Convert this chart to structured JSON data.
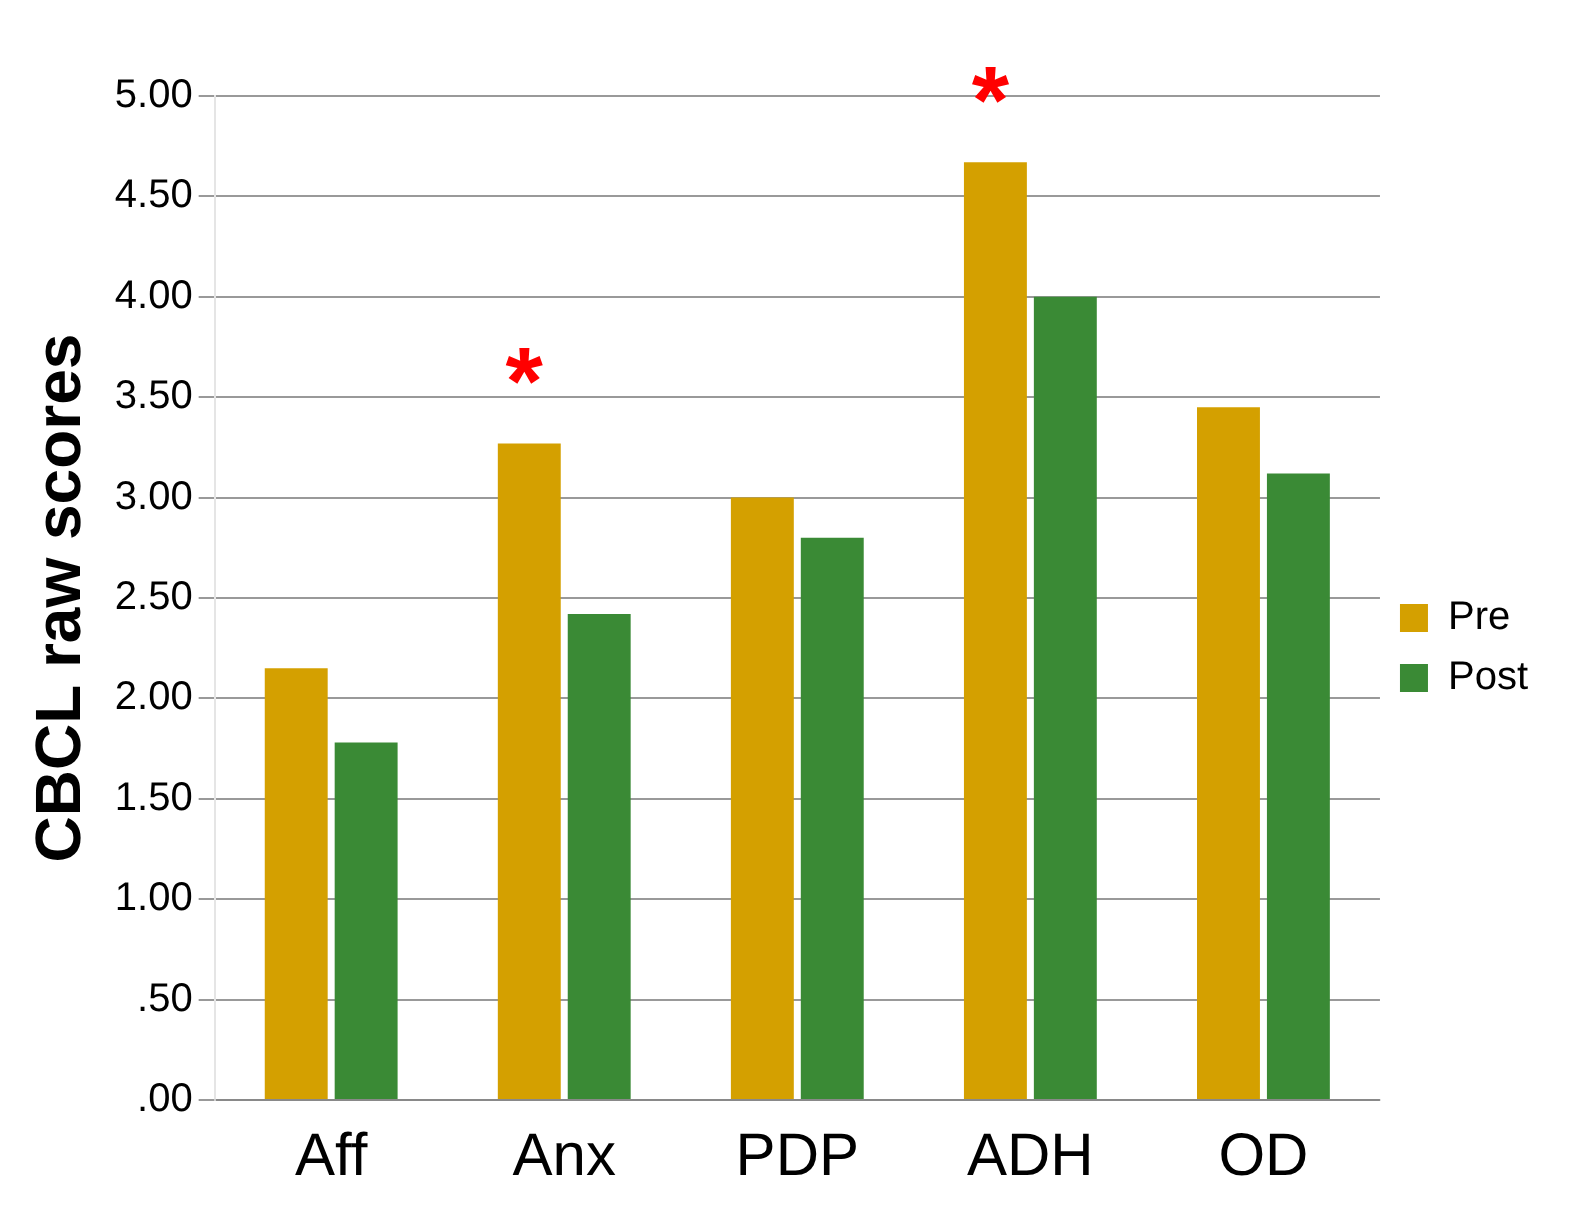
{
  "chart_data": {
    "type": "bar",
    "ylabel": "CBCL raw scores",
    "categories": [
      "Aff",
      "Anx",
      "PDP",
      "ADH",
      "OD"
    ],
    "series": [
      {
        "name": "Pre",
        "color": "#d4a000",
        "values": [
          2.15,
          3.27,
          3.0,
          4.67,
          3.45
        ]
      },
      {
        "name": "Post",
        "color": "#3a8a35",
        "values": [
          1.78,
          2.42,
          2.8,
          4.0,
          3.12
        ]
      }
    ],
    "ylim": [
      0,
      5
    ],
    "yticks": [
      {
        "value": 0,
        "label": ".00"
      },
      {
        "value": 0.5,
        "label": ".50"
      },
      {
        "value": 1,
        "label": "1.00"
      },
      {
        "value": 1.5,
        "label": "1.50"
      },
      {
        "value": 2,
        "label": "2.00"
      },
      {
        "value": 2.5,
        "label": "2.50"
      },
      {
        "value": 3,
        "label": "3.00"
      },
      {
        "value": 3.5,
        "label": "3.50"
      },
      {
        "value": 4,
        "label": "4.00"
      },
      {
        "value": 4.5,
        "label": "4.50"
      },
      {
        "value": 5,
        "label": "5.00"
      }
    ],
    "annotations": [
      {
        "text": "*",
        "x": "Anx",
        "y": 3.27
      },
      {
        "text": "*",
        "x": "ADH",
        "y": 4.67
      }
    ],
    "grid": "y",
    "legend": "right"
  }
}
